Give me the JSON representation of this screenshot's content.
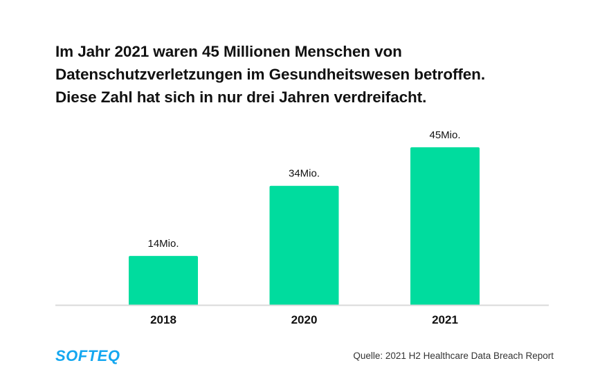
{
  "title_lines": [
    "Im Jahr 2021 waren 45 Millionen Menschen von",
    "Datenschutzverletzungen im Gesundheitswesen betroffen.",
    "Diese Zahl hat sich in nur drei Jahren verdreifacht."
  ],
  "logo": "SOFTEQ",
  "source": "Quelle: 2021 H2 Healthcare Data Breach Report",
  "colors": {
    "bar": "#00dc9e",
    "baseline": "#d9d9d9",
    "logo": "#14a7f0"
  },
  "chart_data": {
    "type": "bar",
    "title": "Im Jahr 2021 waren 45 Millionen Menschen von Datenschutzverletzungen im Gesundheitswesen betroffen. Diese Zahl hat sich in nur drei Jahren verdreifacht.",
    "categories": [
      "2018",
      "2020",
      "2021"
    ],
    "values": [
      14,
      34,
      45
    ],
    "unit": "Mio.",
    "data_labels": [
      "14Mio.",
      "34Mio.",
      "45Mio."
    ],
    "xlabel": "",
    "ylabel": "",
    "ylim": [
      0,
      48
    ],
    "grid": false,
    "legend": "none"
  }
}
